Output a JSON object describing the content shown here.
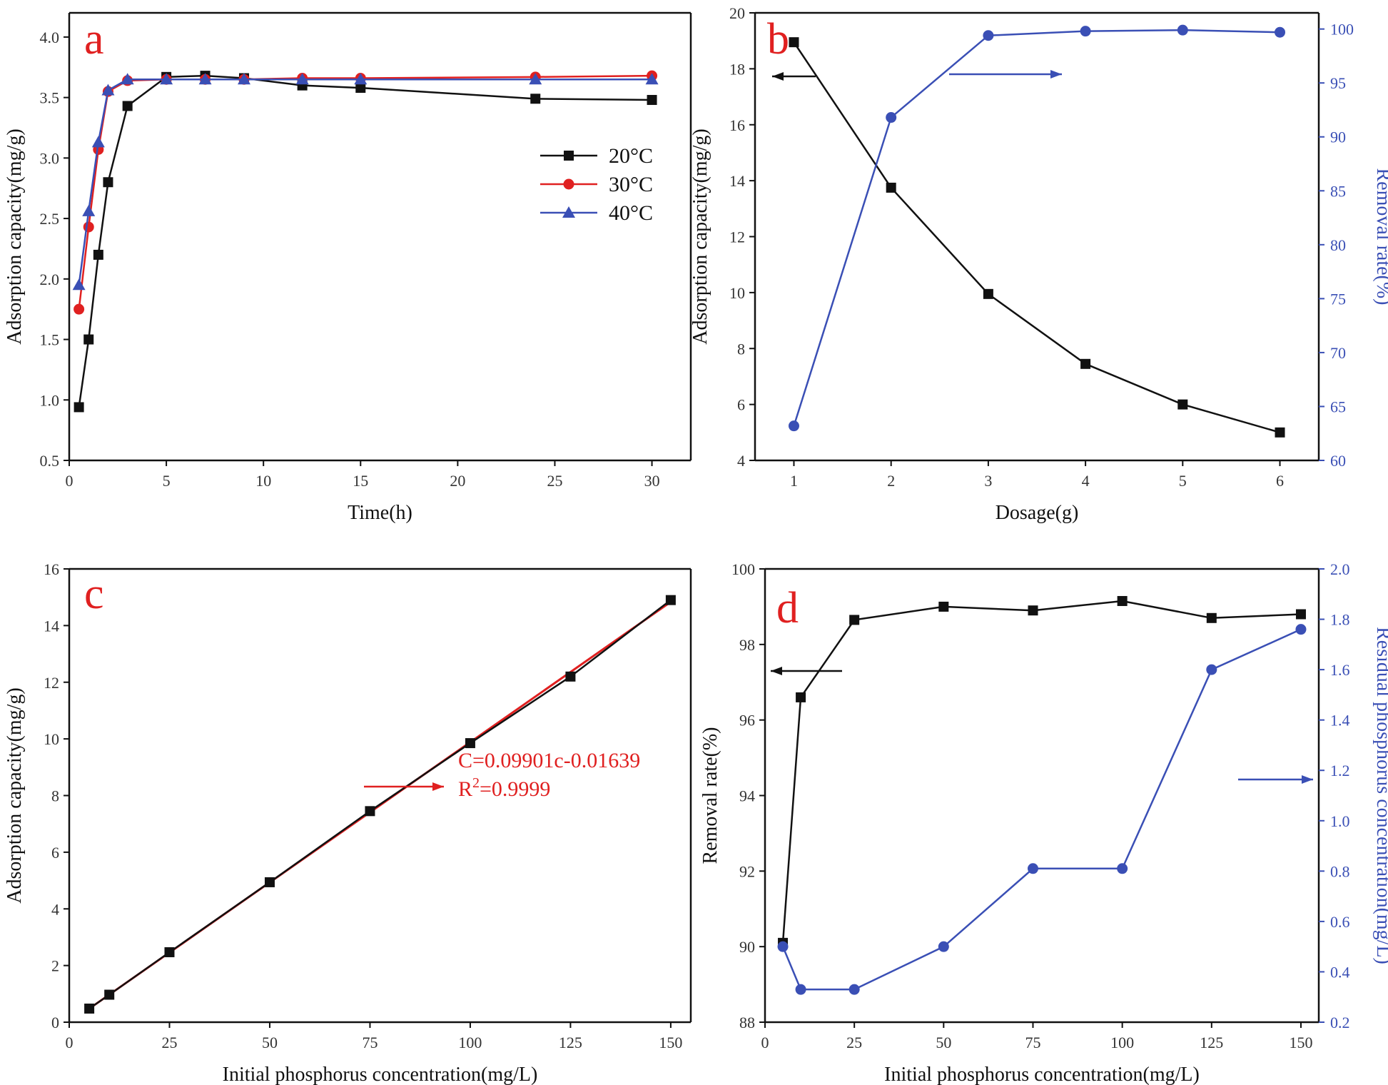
{
  "chart_data": [
    {
      "panel": "a",
      "type": "line",
      "xlabel": "Time(h)",
      "ylabel": "Adsorption capacity(mg/g)",
      "xlim": [
        0,
        32
      ],
      "ylim": [
        0.5,
        4.2
      ],
      "xticks": [
        0,
        5,
        10,
        15,
        20,
        25,
        30
      ],
      "yticks": [
        0.5,
        1.0,
        1.5,
        2.0,
        2.5,
        3.0,
        3.5,
        4.0
      ],
      "xtick_labels": [
        "0",
        "5",
        "10",
        "15",
        "20",
        "25",
        "30"
      ],
      "ytick_labels": [
        "0.5",
        "1.0",
        "1.5",
        "2.0",
        "2.5",
        "3.0",
        "3.5",
        "4.0"
      ],
      "legend_position": "right",
      "series": [
        {
          "name": "20°C",
          "color": "#111111",
          "marker": "square",
          "x": [
            0.5,
            1,
            1.5,
            2,
            3,
            5,
            7,
            9,
            12,
            15,
            24,
            30
          ],
          "y": [
            0.94,
            1.5,
            2.2,
            2.8,
            3.43,
            3.67,
            3.68,
            3.66,
            3.6,
            3.58,
            3.49,
            3.48
          ]
        },
        {
          "name": "30°C",
          "color": "#e02020",
          "marker": "circle",
          "x": [
            0.5,
            1,
            1.5,
            2,
            3,
            5,
            7,
            9,
            12,
            15,
            24,
            30
          ],
          "y": [
            1.75,
            2.43,
            3.07,
            3.55,
            3.64,
            3.65,
            3.65,
            3.65,
            3.66,
            3.66,
            3.67,
            3.68
          ]
        },
        {
          "name": "40°C",
          "color": "#3a4fb5",
          "marker": "triangle",
          "x": [
            0.5,
            1,
            1.5,
            2,
            3,
            5,
            7,
            9,
            12,
            15,
            24,
            30
          ],
          "y": [
            1.95,
            2.56,
            3.13,
            3.56,
            3.65,
            3.65,
            3.65,
            3.65,
            3.65,
            3.65,
            3.65,
            3.65
          ]
        }
      ]
    },
    {
      "panel": "b",
      "type": "line",
      "xlabel": "Dosage(g)",
      "ylabel": "Adsorption capacity(mg/g)",
      "ylabel_right": "Removal rate(%)",
      "xlim": [
        0.6,
        6.4
      ],
      "ylim": [
        4,
        20
      ],
      "ylim_right": [
        60,
        101.5
      ],
      "xticks": [
        1,
        2,
        3,
        4,
        5,
        6
      ],
      "yticks": [
        4,
        6,
        8,
        10,
        12,
        14,
        16,
        18,
        20
      ],
      "yticks_right": [
        60,
        65,
        70,
        75,
        80,
        85,
        90,
        95,
        100
      ],
      "xtick_labels": [
        "1",
        "2",
        "3",
        "4",
        "5",
        "6"
      ],
      "ytick_labels": [
        "4",
        "6",
        "8",
        "10",
        "12",
        "14",
        "16",
        "18",
        "20"
      ],
      "ytick_labels_right": [
        "60",
        "65",
        "70",
        "75",
        "80",
        "85",
        "90",
        "95",
        "100"
      ],
      "series": [
        {
          "name": "Adsorption capacity",
          "axis": "left",
          "color": "#111111",
          "marker": "square",
          "x": [
            1,
            2,
            3,
            4,
            5,
            6
          ],
          "y": [
            18.95,
            13.75,
            9.95,
            7.45,
            6.0,
            5.0
          ]
        },
        {
          "name": "Removal rate",
          "axis": "right",
          "color": "#3a4fb5",
          "marker": "circle",
          "x": [
            1,
            2,
            3,
            4,
            5,
            6
          ],
          "y": [
            63.2,
            91.8,
            99.4,
            99.8,
            99.9,
            99.7
          ]
        }
      ]
    },
    {
      "panel": "c",
      "type": "scatter",
      "xlabel": "Initial phosphorus concentration(mg/L)",
      "ylabel": "Adsorption capacity(mg/g)",
      "xlim": [
        0,
        155
      ],
      "ylim": [
        0,
        16
      ],
      "xticks": [
        0,
        25,
        50,
        75,
        100,
        125,
        150
      ],
      "yticks": [
        0,
        2,
        4,
        6,
        8,
        10,
        12,
        14,
        16
      ],
      "xtick_labels": [
        "0",
        "25",
        "50",
        "75",
        "100",
        "125",
        "150"
      ],
      "ytick_labels": [
        "0",
        "2",
        "4",
        "6",
        "8",
        "10",
        "12",
        "14",
        "16"
      ],
      "annotation_line1": "C=0.09901c-0.01639",
      "annotation_line2_base": "R",
      "annotation_line2_sup": "2",
      "annotation_line2_rest": "=0.9999",
      "series": [
        {
          "name": "Adsorption capacity",
          "color": "#111111",
          "marker": "square",
          "x": [
            5,
            10,
            25,
            50,
            75,
            100,
            125,
            150
          ],
          "y": [
            0.48,
            0.97,
            2.47,
            4.94,
            7.45,
            9.85,
            12.2,
            14.9
          ]
        }
      ],
      "fit": {
        "color": "#e02020",
        "slope": 0.09901,
        "intercept": -0.01639,
        "x_range": [
          5,
          150
        ]
      }
    },
    {
      "panel": "d",
      "type": "line",
      "xlabel": "Initial phosphorus concentration(mg/L)",
      "ylabel": "Removal rate(%)",
      "ylabel_right": "Residual phosphorus concentration(mg/L)",
      "xlim": [
        0,
        155
      ],
      "ylim": [
        88,
        100
      ],
      "ylim_right": [
        0.2,
        2.0
      ],
      "xticks": [
        0,
        25,
        50,
        75,
        100,
        125,
        150
      ],
      "yticks": [
        88,
        90,
        92,
        94,
        96,
        98,
        100
      ],
      "yticks_right": [
        0.2,
        0.4,
        0.6,
        0.8,
        1.0,
        1.2,
        1.4,
        1.6,
        1.8,
        2.0
      ],
      "xtick_labels": [
        "0",
        "25",
        "50",
        "75",
        "100",
        "125",
        "150"
      ],
      "ytick_labels": [
        "88",
        "90",
        "92",
        "94",
        "96",
        "98",
        "100"
      ],
      "ytick_labels_right": [
        "0.2",
        "0.4",
        "0.6",
        "0.8",
        "1.0",
        "1.2",
        "1.4",
        "1.6",
        "1.8",
        "2.0"
      ],
      "series": [
        {
          "name": "Removal rate",
          "axis": "left",
          "color": "#111111",
          "marker": "square",
          "x": [
            5,
            10,
            25,
            50,
            75,
            100,
            125,
            150
          ],
          "y": [
            90.1,
            96.6,
            98.65,
            99.0,
            98.9,
            99.15,
            98.7,
            98.8
          ]
        },
        {
          "name": "Residual phosphorus concentration",
          "axis": "right",
          "color": "#3a4fb5",
          "marker": "circle",
          "x": [
            5,
            10,
            25,
            50,
            75,
            100,
            125,
            150
          ],
          "y": [
            0.5,
            0.33,
            0.33,
            0.5,
            0.81,
            0.81,
            1.6,
            1.76
          ]
        }
      ]
    }
  ]
}
